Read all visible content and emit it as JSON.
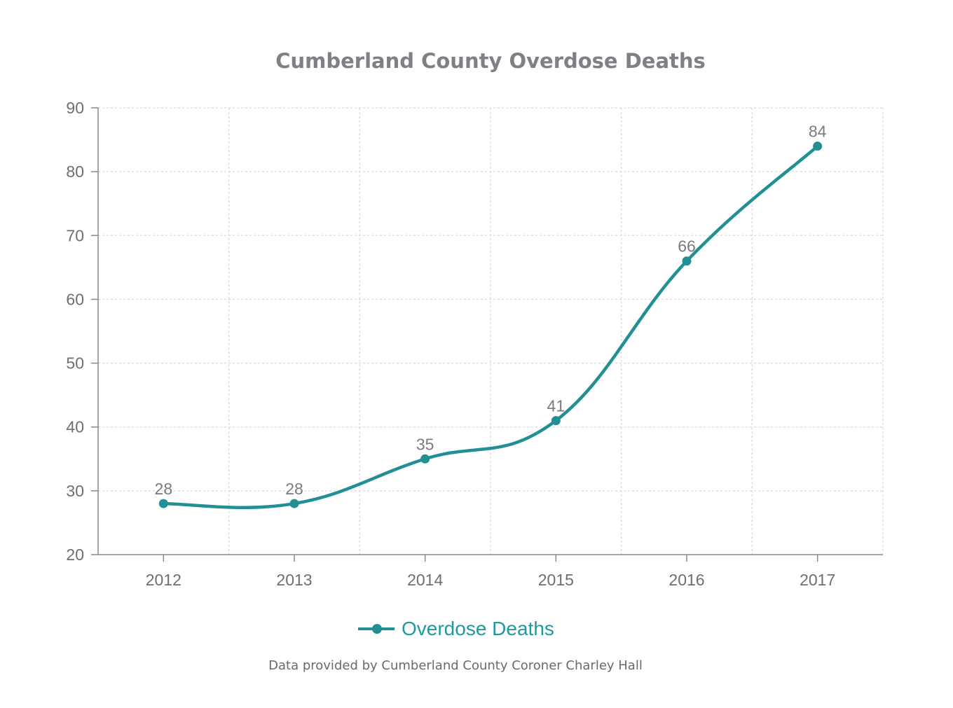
{
  "chart_data": {
    "type": "line",
    "title": "Cumberland County Overdose Deaths",
    "categories": [
      "2012",
      "2013",
      "2014",
      "2015",
      "2016",
      "2017"
    ],
    "series": [
      {
        "name": "Overdose Deaths",
        "values": [
          28,
          28,
          35,
          41,
          66,
          84
        ],
        "data_labels": [
          "28",
          "28",
          "35",
          "41",
          "66",
          "84"
        ],
        "color": "#228f95",
        "smooth": true,
        "markers": true
      }
    ],
    "ylim": [
      20,
      90
    ],
    "yticks": [
      20,
      30,
      40,
      50,
      60,
      70,
      80,
      90
    ],
    "xlabel": "",
    "ylabel": "",
    "grid": true,
    "legend_position": "bottom"
  },
  "footnote": "Data provided by Cumberland County Coroner Charley Hall",
  "colors": {
    "series": "#228f95",
    "legend_text": "#1f9aa0",
    "grid": "#dadada",
    "axis": "#8a8a8a",
    "text": "#6e6e73"
  }
}
